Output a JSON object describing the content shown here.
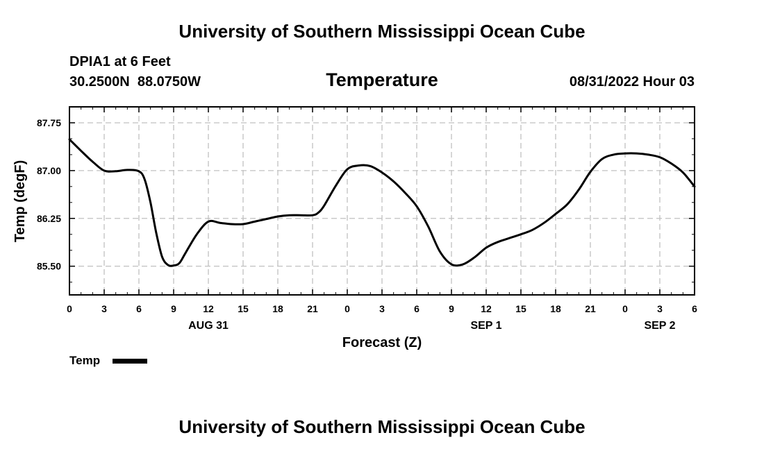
{
  "header": {
    "org_title_top": "University of Southern Mississippi Ocean Cube",
    "station": "DPIA1 at 6 Feet",
    "location": "30.2500N  88.0750W",
    "panel_title": "Temperature",
    "run_time": "08/31/2022 Hour 03",
    "org_title_bottom": "University of Southern Mississippi Ocean Cube"
  },
  "colors": {
    "line": "#000000",
    "grid": "#c0c0c0"
  },
  "chart_data": {
    "type": "line",
    "title": "Temperature",
    "xlabel": "Forecast (Z)",
    "ylabel": "Temp (degF)",
    "xlim": [
      0,
      54
    ],
    "ylim": [
      85.05,
      88.0
    ],
    "x_tick_values": [
      0,
      3,
      6,
      9,
      12,
      15,
      18,
      21,
      24,
      27,
      30,
      33,
      36,
      39,
      42,
      45,
      48,
      51,
      54
    ],
    "x_tick_labels": [
      "0",
      "3",
      "6",
      "9",
      "12",
      "15",
      "18",
      "21",
      "0",
      "3",
      "6",
      "9",
      "12",
      "15",
      "18",
      "21",
      "0",
      "3",
      "6"
    ],
    "y_tick_values": [
      85.5,
      86.25,
      87.0,
      87.75
    ],
    "y_tick_labels": [
      "85.50",
      "86.25",
      "87.00",
      "87.75"
    ],
    "date_labels": [
      {
        "x": 12,
        "label": "AUG 31"
      },
      {
        "x": 36,
        "label": "SEP 1"
      },
      {
        "x": 51,
        "label": "SEP 2"
      }
    ],
    "grid": true,
    "legend": {
      "position": "bottom-left",
      "entries": [
        "Temp"
      ]
    },
    "series": [
      {
        "name": "Temp",
        "x": [
          0,
          1,
          2,
          3,
          4,
          5,
          6,
          6.5,
          7,
          7.5,
          8,
          8.5,
          9,
          9.5,
          10,
          11,
          12,
          13,
          14,
          15,
          16,
          17,
          18,
          19,
          20,
          21,
          21.5,
          22,
          23,
          24,
          25,
          26,
          27,
          28,
          29,
          30,
          31,
          32,
          33,
          34,
          35,
          36,
          37,
          38,
          39,
          40,
          41,
          42,
          43,
          44,
          45,
          46,
          47,
          48,
          49,
          50,
          51,
          52,
          53,
          54
        ],
        "values": [
          87.49,
          87.31,
          87.14,
          87.0,
          86.99,
          87.01,
          86.99,
          86.86,
          86.5,
          86.02,
          85.65,
          85.52,
          85.51,
          85.55,
          85.7,
          86.0,
          86.2,
          86.18,
          86.16,
          86.16,
          86.2,
          86.24,
          86.28,
          86.3,
          86.3,
          86.3,
          86.34,
          86.45,
          86.76,
          87.02,
          87.08,
          87.07,
          86.97,
          86.83,
          86.65,
          86.44,
          86.12,
          85.73,
          85.53,
          85.53,
          85.64,
          85.79,
          85.88,
          85.94,
          86.0,
          86.07,
          86.18,
          86.32,
          86.47,
          86.7,
          86.98,
          87.18,
          87.25,
          87.27,
          87.27,
          87.25,
          87.21,
          87.11,
          86.97,
          86.75
        ]
      }
    ]
  }
}
